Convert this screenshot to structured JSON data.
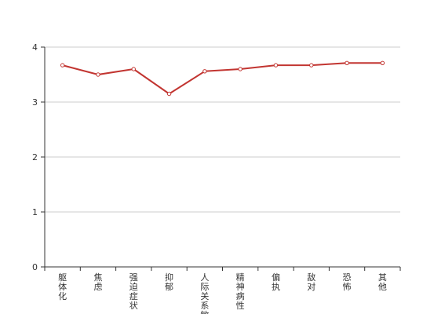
{
  "chart_data": {
    "type": "line",
    "categories": [
      "躯体化",
      "焦虑",
      "强迫症状",
      "抑郁",
      "人际关系敏感",
      "精神病性",
      "偏执",
      "敌对",
      "恐怖",
      "其他"
    ],
    "series": [
      {
        "values": [
          3.67,
          3.5,
          3.6,
          3.15,
          3.56,
          3.6,
          3.67,
          3.67,
          3.71,
          3.71
        ]
      }
    ],
    "ylim": [
      0,
      4
    ],
    "yticks": [
      0,
      1,
      2,
      3,
      4
    ],
    "grid": true,
    "line_color": "#c23531",
    "title": "",
    "xlabel": "",
    "ylabel": ""
  }
}
